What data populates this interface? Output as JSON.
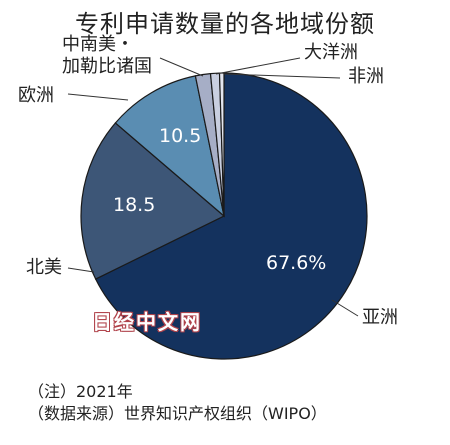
{
  "chart_data": {
    "type": "pie",
    "title": "专利申请数量的各地域份额",
    "slices": [
      {
        "label": "亚洲",
        "value": 67.6,
        "value_label": "67.6%",
        "color": "#14325e"
      },
      {
        "label": "北美",
        "value": 18.5,
        "value_label": "18.5",
        "color": "#3d5677"
      },
      {
        "label": "欧洲",
        "value": 10.5,
        "value_label": "10.5",
        "color": "#5a8db2"
      },
      {
        "label": "中南美・加勒比诸国",
        "value": 1.7,
        "value_label": "",
        "color": "#a6aec6"
      },
      {
        "label": "大洋洲",
        "value": 1.0,
        "value_label": "",
        "color": "#c9cfe0"
      },
      {
        "label": "非洲",
        "value": 0.5,
        "value_label": "",
        "color": "#e3e6ef"
      }
    ]
  },
  "labels": {
    "latam_line1": "中南美・",
    "latam_line2": "加勒比诸国"
  },
  "watermark": "日经中文网",
  "notes": {
    "note1": "（注）2021年",
    "note2": "（数据来源）世界知识产权组织（WIPO）"
  }
}
